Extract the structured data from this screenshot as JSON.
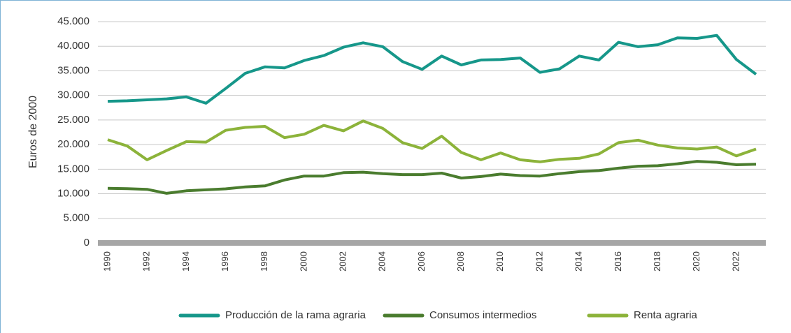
{
  "chart_data": {
    "type": "line",
    "y_label": "Euros de 2000",
    "categories": [
      "1990",
      null,
      "1992",
      null,
      "1994",
      null,
      "1996",
      null,
      "1998",
      null,
      "2000",
      null,
      "2002",
      null,
      "2004",
      null,
      "2006",
      null,
      "2008",
      null,
      "2010",
      null,
      "2012",
      null,
      "2014",
      null,
      "2016",
      null,
      "2018",
      null,
      "2020",
      null,
      "2022",
      null
    ],
    "series": [
      {
        "name": "Producción de la rama agraria",
        "color": "#16978a",
        "values": [
          28800,
          28900,
          29100,
          29300,
          29700,
          28400,
          31400,
          34500,
          35800,
          35600,
          37100,
          38100,
          39800,
          40700,
          39900,
          36900,
          35300,
          38000,
          36200,
          37200,
          37300,
          37600,
          34700,
          35400,
          38000,
          37200,
          40800,
          39900,
          40300,
          41700,
          41600,
          42200,
          37300,
          34300
        ]
      },
      {
        "name": "Consumos intermedios",
        "color": "#4a7c2e",
        "values": [
          11100,
          11050,
          10900,
          10100,
          10600,
          10800,
          11000,
          11400,
          11600,
          12800,
          13600,
          13600,
          14300,
          14400,
          14100,
          13900,
          13900,
          14200,
          13200,
          13500,
          14000,
          13700,
          13600,
          14100,
          14500,
          14700,
          15200,
          15600,
          15700,
          16100,
          16600,
          16400,
          15900,
          16000
        ]
      },
      {
        "name": "Renta agraria",
        "color": "#8cb33a",
        "values": [
          21000,
          19700,
          16900,
          18800,
          20600,
          20500,
          22900,
          23500,
          23700,
          21400,
          22100,
          23900,
          22800,
          24800,
          23300,
          20400,
          19200,
          21700,
          18400,
          16900,
          18300,
          16900,
          16500,
          17000,
          17200,
          18100,
          20400,
          20900,
          19900,
          19300,
          19100,
          19500,
          17700,
          19100
        ]
      }
    ],
    "ylim": [
      0,
      45000
    ],
    "yticks": [
      0,
      {
        "value": 5000,
        "label": "5.000"
      },
      {
        "value": 10000,
        "label": "10.000"
      },
      {
        "value": 15000,
        "label": "15.000"
      },
      {
        "value": 20000,
        "label": "20.000"
      },
      {
        "value": 25000,
        "label": "25.000"
      },
      {
        "value": 30000,
        "label": "30.000"
      },
      {
        "value": 35000,
        "label": "35.000"
      },
      {
        "value": 40000,
        "label": "40.000"
      },
      {
        "value": 45000,
        "label": "45.000"
      }
    ],
    "grid": true,
    "legend": "bottom"
  }
}
